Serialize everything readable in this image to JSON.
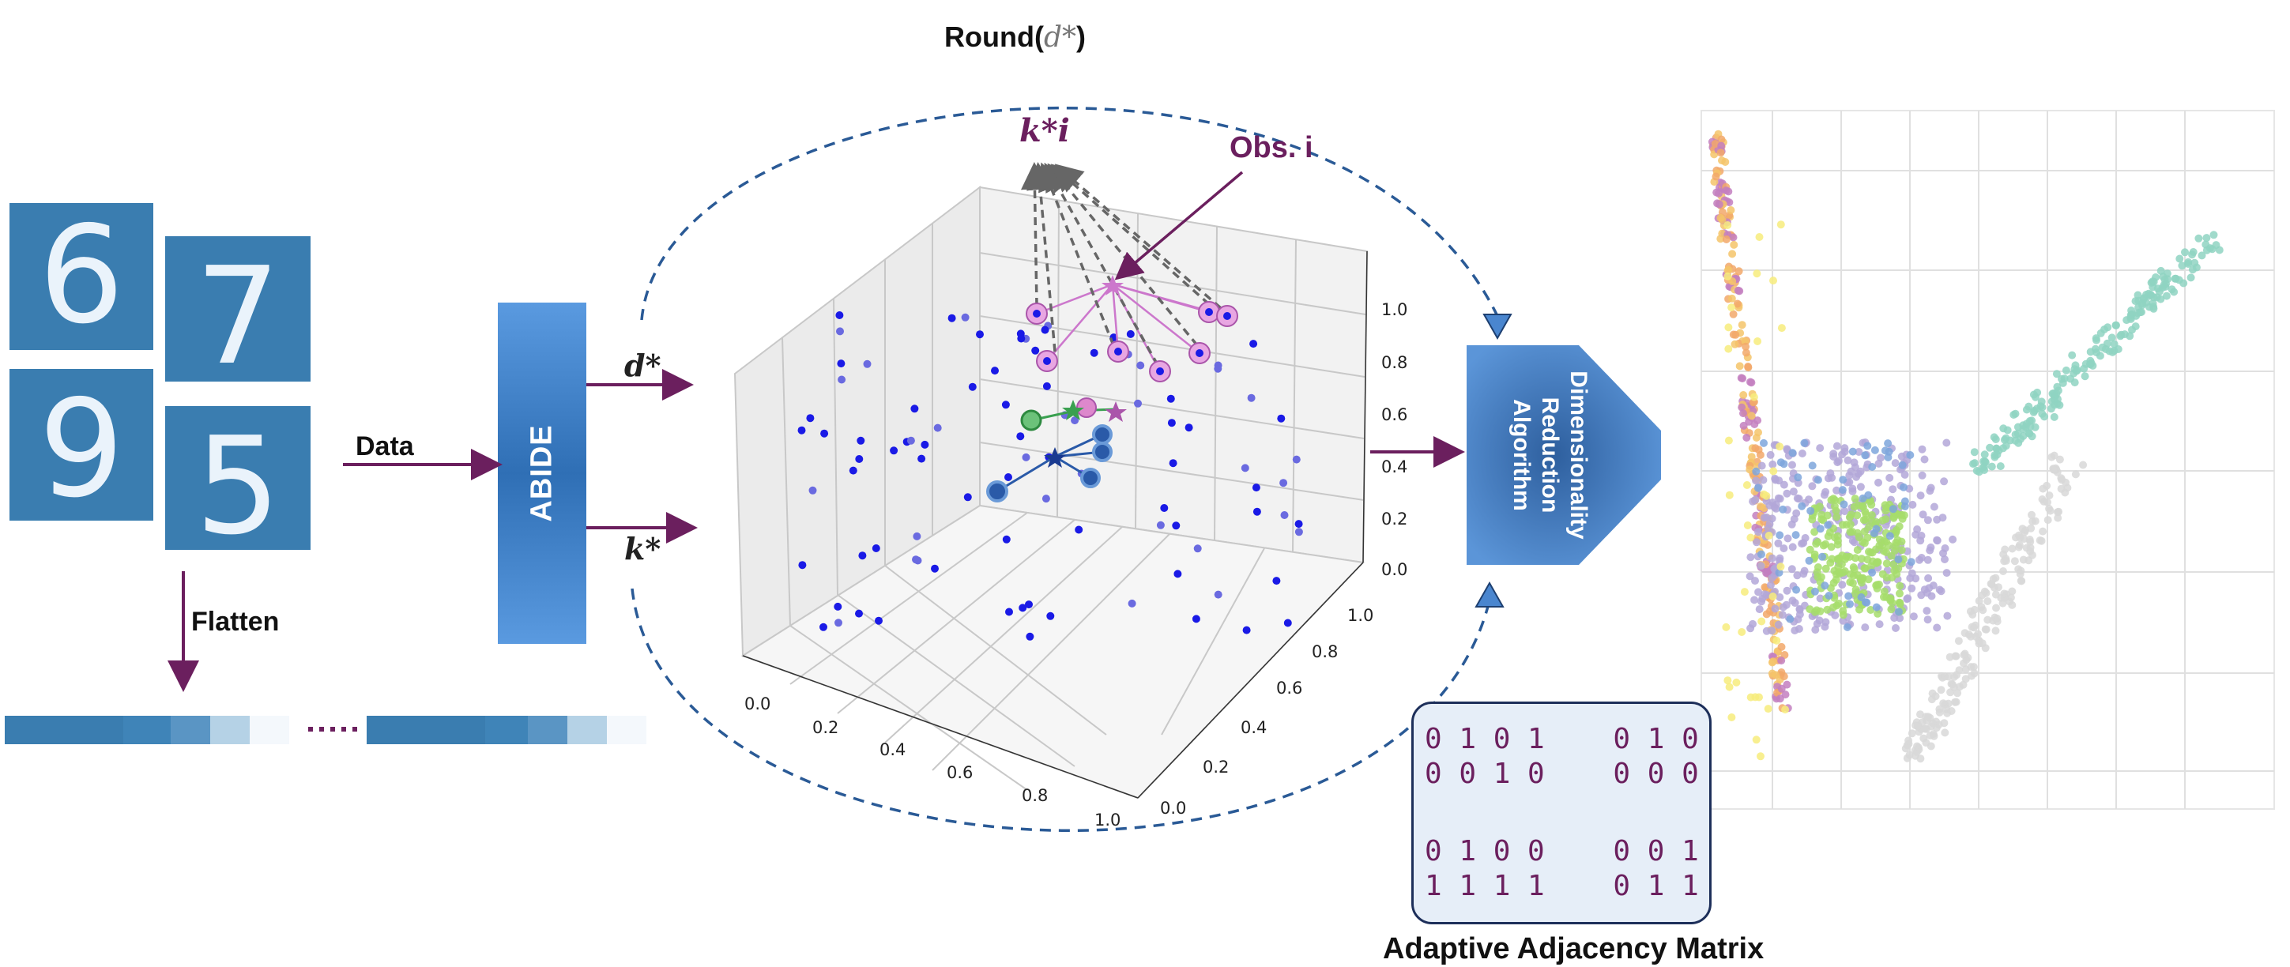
{
  "digits": [
    "6",
    "7",
    "9",
    "5"
  ],
  "labels": {
    "data": "Data",
    "flatten": "Flatten",
    "abide": "ABIDE",
    "d_star": "d*",
    "k_star": "k*",
    "round_prefix": "Round(",
    "round_var": "d*",
    "round_suffix": ")",
    "k_i_star": "k*i",
    "obs_i": "Obs. i",
    "dim_reduction": "Dimensionality\nReduction\nAlgorithm",
    "adjacency_title": "Adaptive Adjacency Matrix"
  },
  "axis3d": {
    "z_ticks": [
      "1.0",
      "0.8",
      "0.6",
      "0.4",
      "0.2",
      "0.0"
    ],
    "x_ticks": [
      "0.0",
      "0.2",
      "0.4",
      "0.6",
      "0.8",
      "1.0"
    ],
    "y_ticks": [
      "1.0",
      "0.8",
      "0.6",
      "0.4",
      "0.2",
      "0.0"
    ]
  },
  "matrix_rows": [
    "0 1 0 1    0 1 0",
    "0 0 1 0    0 0 0",
    "",
    "0 1 0 0    0 0 1",
    "1 1 1 1    0 1 1"
  ],
  "colors": {
    "arrow": "#6b1f5e",
    "dashed": "#2a5a96",
    "point": "#1a1ae6",
    "neighbor": "#cc77cc",
    "digit_bg": "#3a7db0",
    "matrix_border": "#1d2f5a",
    "matrix_text": "#6b1f5e"
  },
  "embedding_colors": [
    "#c37fc0",
    "#f4c46a",
    "#f7ec7c",
    "#b3a7d8",
    "#a6dd6b",
    "#8fd3c2",
    "#d8d8d8",
    "#7ea6dc",
    "#f2a86a"
  ]
}
